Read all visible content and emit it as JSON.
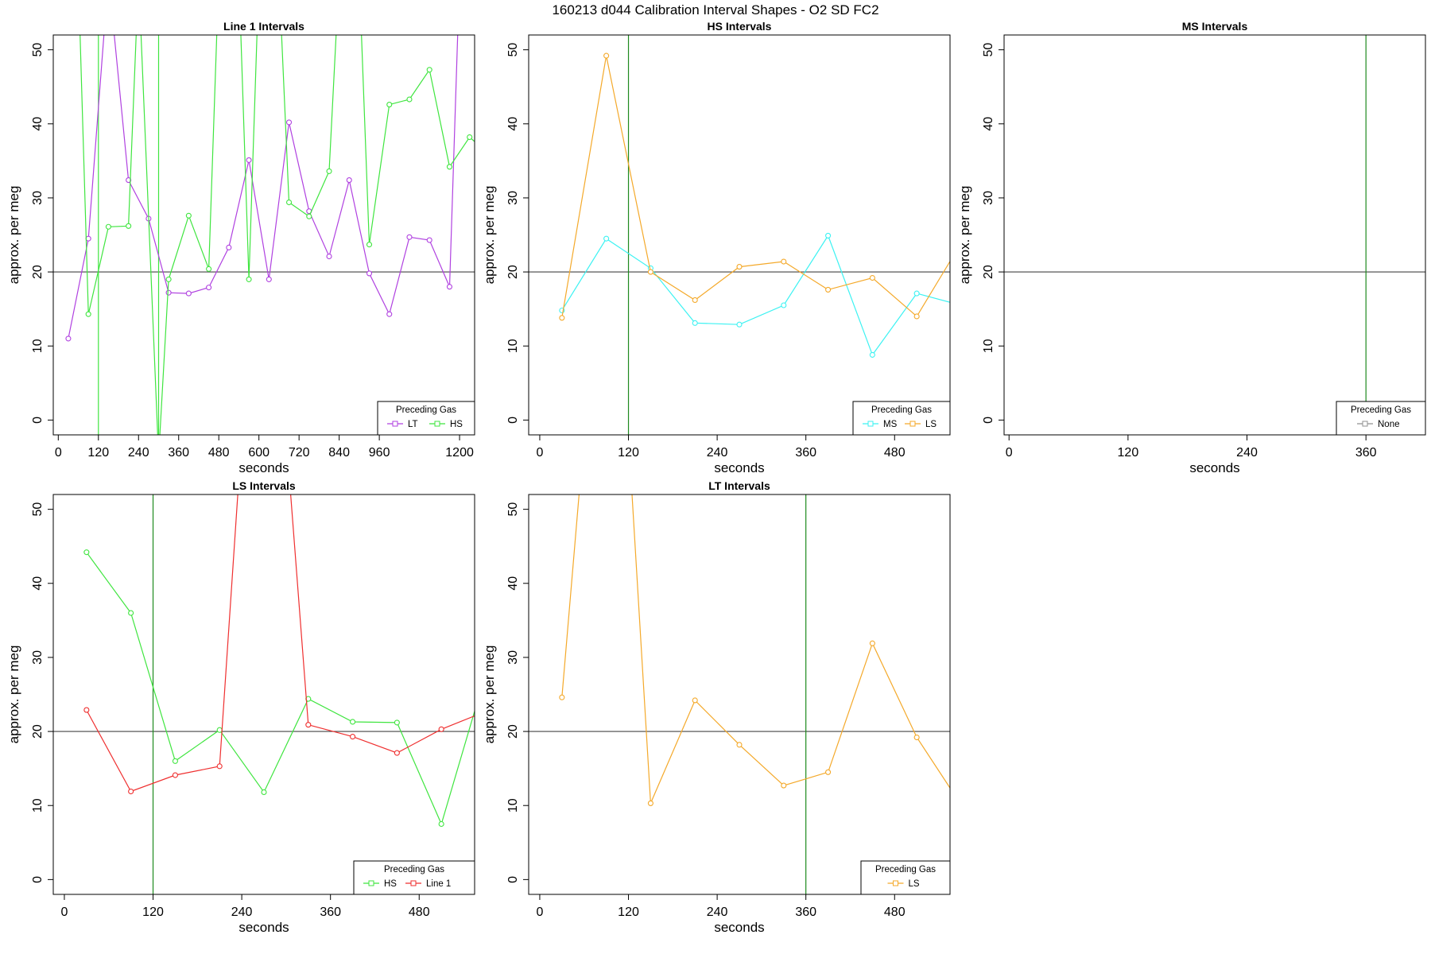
{
  "figure": {
    "title": "160213   d044   Calibration Interval Shapes - O2 SD FC2"
  },
  "colors": {
    "LT": "#b041e0",
    "HS": "#3fe53f",
    "MS": "#3cf2f2",
    "LS": "#f4a92a",
    "Line 1": "#ef2f2f",
    "None": "#909090",
    "refline": "#444444",
    "vline": "#1e8a1e"
  },
  "chart_data": [
    {
      "type": "line",
      "title": "Line 1 Intervals",
      "xlabel": "seconds",
      "ylabel": "approx. per meg",
      "xlim": [
        -15,
        1245
      ],
      "ylim": [
        -2,
        52
      ],
      "xticks": [
        0,
        120,
        240,
        360,
        480,
        600,
        720,
        840,
        960,
        1200
      ],
      "xtick_labels": [
        "0",
        "120",
        "240",
        "360",
        "480",
        "600",
        "720",
        "840",
        "960",
        "1200"
      ],
      "yticks": [
        0,
        10,
        20,
        30,
        40,
        50
      ],
      "ytick_labels": [
        "0",
        "10",
        "20",
        "30",
        "40",
        "50"
      ],
      "hline": 20,
      "vlines": [
        {
          "x": 120,
          "series": "HS"
        },
        {
          "x": 300,
          "series": "HS"
        }
      ],
      "legend": {
        "title": "Preceding Gas",
        "position": "bottom-right",
        "entries": [
          "LT",
          "HS"
        ]
      },
      "series": [
        {
          "name": "LT",
          "x": [
            30,
            90,
            150,
            210,
            270,
            330,
            390,
            450,
            510,
            570,
            630,
            690,
            750,
            810,
            870,
            930,
            990,
            1050,
            1110,
            1170,
            1200
          ],
          "y": [
            11,
            24.5,
            60,
            32.4,
            27.2,
            17.2,
            17.1,
            17.9,
            23.3,
            35.1,
            19,
            40.2,
            28.2,
            22.1,
            32.4,
            19.8,
            14.3,
            24.7,
            24.3,
            18,
            60
          ]
        },
        {
          "name": "HS",
          "x": [
            60,
            90,
            150,
            210,
            240,
            300,
            330,
            390,
            450,
            480,
            540,
            570,
            600,
            660,
            690,
            750,
            810,
            840,
            900,
            930,
            990,
            1050,
            1110,
            1170,
            1230,
            1260
          ],
          "y": [
            60,
            14.3,
            26.1,
            26.2,
            60,
            -5,
            19,
            27.6,
            20.4,
            60,
            60,
            19,
            60,
            60,
            29.4,
            27.5,
            33.6,
            60,
            60,
            23.7,
            42.6,
            43.3,
            47.3,
            34.2,
            38.2,
            37
          ]
        }
      ]
    },
    {
      "type": "line",
      "title": "HS Intervals",
      "xlabel": "seconds",
      "ylabel": "approx. per meg",
      "xlim": [
        -15,
        555
      ],
      "ylim": [
        -2,
        52
      ],
      "xticks": [
        0,
        120,
        240,
        360,
        480
      ],
      "xtick_labels": [
        "0",
        "120",
        "240",
        "360",
        "480"
      ],
      "yticks": [
        0,
        10,
        20,
        30,
        40,
        50
      ],
      "ytick_labels": [
        "0",
        "10",
        "20",
        "30",
        "40",
        "50"
      ],
      "hline": 20,
      "vlines": [
        {
          "x": 120,
          "series": "vline"
        }
      ],
      "legend": {
        "title": "Preceding Gas",
        "position": "bottom-right",
        "entries": [
          "MS",
          "LS"
        ]
      },
      "series": [
        {
          "name": "MS",
          "x": [
            30,
            90,
            150,
            210,
            270,
            330,
            390,
            450,
            510,
            570
          ],
          "y": [
            14.8,
            24.5,
            20.5,
            13.1,
            12.9,
            15.5,
            24.9,
            8.8,
            17.1,
            15.5
          ]
        },
        {
          "name": "LS",
          "x": [
            30,
            90,
            150,
            210,
            270,
            330,
            390,
            450,
            510,
            570
          ],
          "y": [
            13.8,
            49.2,
            20,
            16.2,
            20.7,
            21.4,
            17.6,
            19.2,
            14,
            23.9
          ]
        }
      ]
    },
    {
      "type": "line",
      "title": "MS Intervals",
      "xlabel": "seconds",
      "ylabel": "approx. per meg",
      "xlim": [
        -5,
        420
      ],
      "ylim": [
        -2,
        52
      ],
      "xticks": [
        0,
        120,
        240,
        360
      ],
      "xtick_labels": [
        "0",
        "120",
        "240",
        "360"
      ],
      "yticks": [
        0,
        10,
        20,
        30,
        40,
        50
      ],
      "ytick_labels": [
        "0",
        "10",
        "20",
        "30",
        "40",
        "50"
      ],
      "hline": 20,
      "vlines": [
        {
          "x": 360,
          "series": "vline"
        }
      ],
      "legend": {
        "title": "Preceding Gas",
        "position": "bottom-right",
        "entries": [
          "None"
        ]
      },
      "series": []
    },
    {
      "type": "line",
      "title": "LS Intervals",
      "xlabel": "seconds",
      "ylabel": "approx. per meg",
      "xlim": [
        -15,
        555
      ],
      "ylim": [
        -2,
        52
      ],
      "xticks": [
        0,
        120,
        240,
        360,
        480
      ],
      "xtick_labels": [
        "0",
        "120",
        "240",
        "360",
        "480"
      ],
      "yticks": [
        0,
        10,
        20,
        30,
        40,
        50
      ],
      "ytick_labels": [
        "0",
        "10",
        "20",
        "30",
        "40",
        "50"
      ],
      "hline": 20,
      "vlines": [
        {
          "x": 120,
          "series": "vline"
        }
      ],
      "legend": {
        "title": "Preceding Gas",
        "position": "bottom-right",
        "entries": [
          "HS",
          "Line 1"
        ]
      },
      "series": [
        {
          "name": "HS",
          "x": [
            30,
            90,
            150,
            210,
            270,
            330,
            390,
            450,
            510,
            570
          ],
          "y": [
            44.2,
            36,
            16,
            20.2,
            11.8,
            24.4,
            21.3,
            21.2,
            7.5,
            27.8
          ]
        },
        {
          "name": "Line 1",
          "x": [
            30,
            90,
            150,
            210,
            240,
            300,
            330,
            390,
            450,
            510,
            570
          ],
          "y": [
            22.9,
            11.9,
            14.1,
            15.3,
            60,
            60,
            20.9,
            19.3,
            17.1,
            20.3,
            22.7
          ]
        }
      ]
    },
    {
      "type": "line",
      "title": "LT Intervals",
      "xlabel": "seconds",
      "ylabel": "approx. per meg",
      "xlim": [
        -15,
        555
      ],
      "ylim": [
        -2,
        52
      ],
      "xticks": [
        0,
        120,
        240,
        360,
        480
      ],
      "xtick_labels": [
        "0",
        "120",
        "240",
        "360",
        "480"
      ],
      "yticks": [
        0,
        10,
        20,
        30,
        40,
        50
      ],
      "ytick_labels": [
        "0",
        "10",
        "20",
        "30",
        "40",
        "50"
      ],
      "hline": 20,
      "vlines": [
        {
          "x": 360,
          "series": "vline"
        }
      ],
      "legend": {
        "title": "Preceding Gas",
        "position": "bottom-right",
        "entries": [
          "LS"
        ]
      },
      "series": [
        {
          "name": "LS",
          "x": [
            30,
            60,
            120,
            150,
            210,
            270,
            330,
            390,
            450,
            510,
            570
          ],
          "y": [
            24.6,
            60,
            60,
            10.3,
            24.2,
            18.2,
            12.7,
            14.5,
            31.9,
            19.2,
            10.1
          ]
        }
      ]
    }
  ]
}
